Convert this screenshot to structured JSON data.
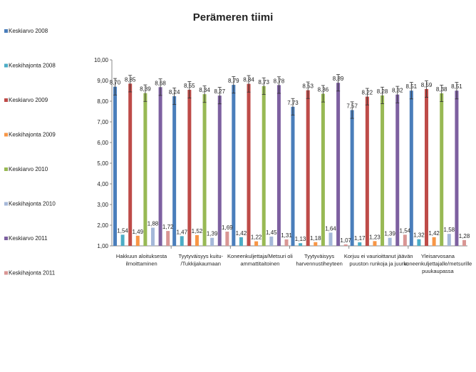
{
  "chart_data": {
    "type": "bar",
    "title": "Perämeren tiimi",
    "ylim": [
      1,
      10
    ],
    "yticks": [
      "1,00",
      "2,00",
      "3,00",
      "4,00",
      "5,00",
      "6,00",
      "7,00",
      "8,00",
      "9,00",
      "10,00"
    ],
    "grid": false,
    "legend_position": "left",
    "categories": [
      [
        "Hakkuun aloituksesta",
        "ilmoittaminen"
      ],
      [
        "Tyytyväisyys kuitu-",
        "/Tukkijakaumaan"
      ],
      [
        "Koneenkuljettaja/Metsuri oli",
        "ammattitaitoinen"
      ],
      [
        "Tyytyväisyys",
        "harvennustiheyteen"
      ],
      [
        "Korjuu ei vaurioittanut jäävän",
        "puuston runkoja ja juuria"
      ],
      [
        "Yleisarvosana",
        "koneenkuljettajalle/metsurille",
        "puukaupassa"
      ]
    ],
    "series": [
      {
        "name": "Keskiarvo 2008",
        "color": "#4a7ebb",
        "values": [
          8.7,
          8.24,
          8.79,
          7.73,
          7.57,
          8.51
        ],
        "labels": [
          "8,70",
          "8,24",
          "8,79",
          "7,73",
          "7,57",
          "8,51"
        ],
        "error_bars": true
      },
      {
        "name": "Keskihajonta 2008",
        "color": "#4bacc6",
        "values": [
          1.54,
          1.47,
          1.42,
          1.13,
          1.17,
          1.32
        ],
        "labels": [
          "1,54",
          "1,47",
          "1,42",
          "1,13",
          "1,17",
          "1,32"
        ],
        "error_bars": false
      },
      {
        "name": "Keskiarvo 2009",
        "color": "#be4b48",
        "values": [
          8.85,
          8.55,
          8.84,
          8.53,
          8.22,
          8.59
        ],
        "labels": [
          "8,85",
          "8,55",
          "8,84",
          "8,53",
          "8,22",
          "8,59"
        ],
        "error_bars": true
      },
      {
        "name": "Keskihajonta 2009",
        "color": "#f79646",
        "values": [
          1.49,
          1.52,
          1.22,
          1.18,
          1.23,
          1.42
        ],
        "labels": [
          "1,49",
          "1,52",
          "1,22",
          "1,18",
          "1,23",
          "1,42"
        ],
        "error_bars": false
      },
      {
        "name": "Keskiarvo 2010",
        "color": "#98b954",
        "values": [
          8.39,
          8.34,
          8.73,
          8.36,
          8.28,
          8.38
        ],
        "labels": [
          "8,39",
          "8,34",
          "8,73",
          "8,36",
          "8,28",
          "8,38"
        ],
        "error_bars": true
      },
      {
        "name": "Keskihajonta 2010",
        "color": "#a5b8d9",
        "values": [
          1.88,
          1.39,
          1.45,
          1.64,
          1.39,
          1.58
        ],
        "labels": [
          "1,88",
          "1,39",
          "1,45",
          "1,64",
          "1,39",
          "1,58"
        ],
        "error_bars": false
      },
      {
        "name": "Keskiarvo 2011",
        "color": "#7d60a0",
        "values": [
          8.68,
          8.27,
          8.78,
          8.89,
          8.32,
          8.51
        ],
        "labels": [
          "8,68",
          "8,27",
          "8,78",
          "8,89",
          "8,32",
          "8,51"
        ],
        "error_bars": true
      },
      {
        "name": "Keskihajonta 2011",
        "color": "#d99694",
        "values": [
          1.72,
          1.69,
          1.31,
          1.07,
          1.54,
          1.28
        ],
        "labels": [
          "1,72",
          "1,69",
          "1,31",
          "1,07",
          "1,54",
          "1,28"
        ],
        "error_bars": false
      }
    ]
  }
}
